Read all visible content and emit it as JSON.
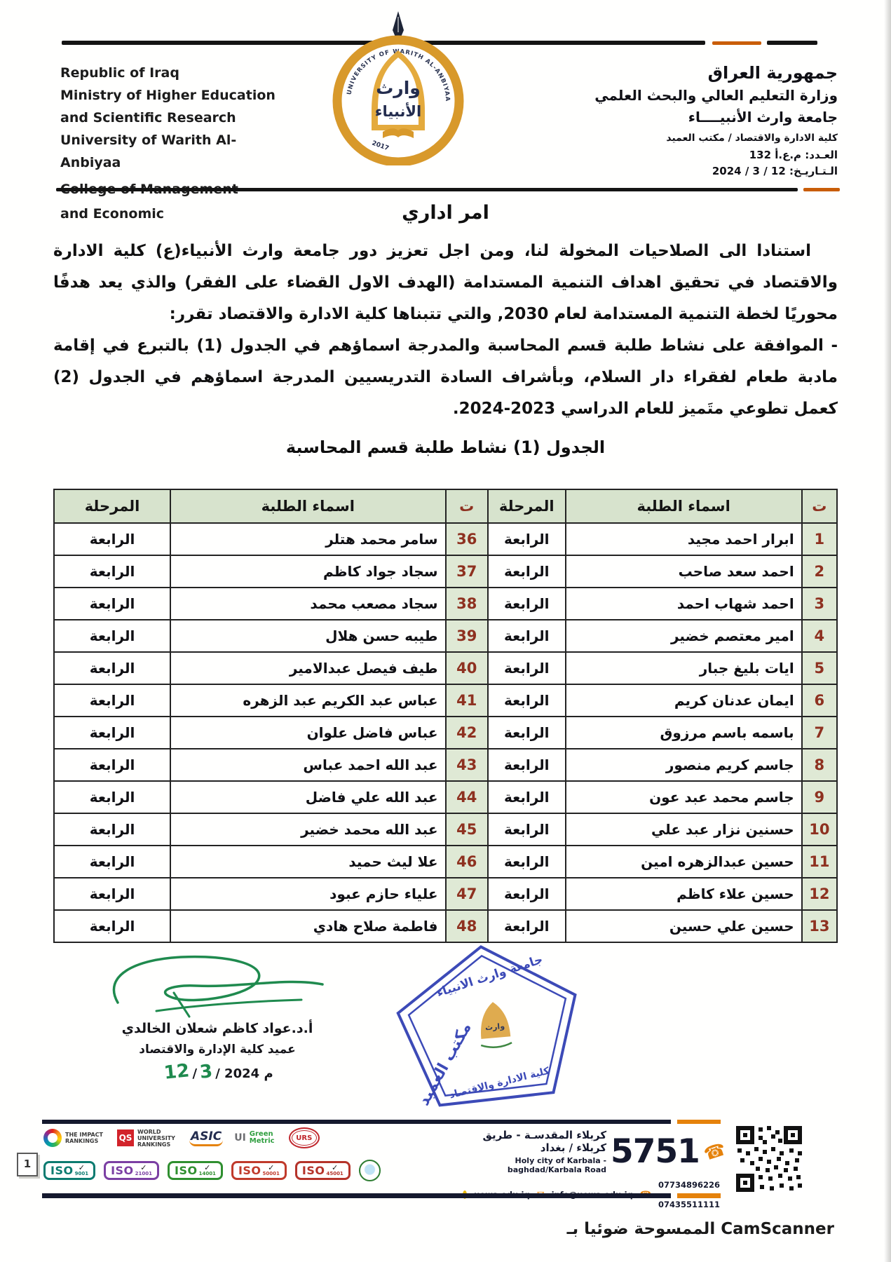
{
  "colors": {
    "table_header_bg": "#d7e3cd",
    "number_cell_bg": "#dfe9d5",
    "number_text": "#8e3120",
    "stamp_blue": "#2c3bb2",
    "signature_green": "#1f8a4e",
    "footer_orange": "#e5820b",
    "footer_navy": "#15192e"
  },
  "header": {
    "english_lines": [
      "Republic of Iraq",
      "Ministry of Higher Education",
      "and Scientific Research",
      "University of Warith Al-Anbiyaa",
      "College of Management",
      "and Economic"
    ],
    "arabic_lines": [
      "جمهورية العراق",
      "وزارة التعليم العالي والبحث العلمي",
      "جامعة وارث الأنبيــــاء",
      "كلية الادارة والاقتصاد / مكتب العميد"
    ],
    "number_line": "العـدد: م.ع.أ 132",
    "date_line": "الـتـاريـخ: 12 / 3 / 2024",
    "logo": {
      "band_text": "UNIVERSITY OF WARITH AL-ANBIYAA",
      "year": "2017",
      "name_line1": "وارث",
      "name_line2": "الأنبياء"
    }
  },
  "document": {
    "title": "امر اداري",
    "paragraph_1": "استنادا الى الصلاحيات المخولة لنا، ومن اجل تعزيز دور جامعة وارث الأنبياء(ع) كلية الادارة والاقتصاد في تحقيق اهداف التنمية المستدامة (الهدف الاول القضاء على الفقر) والذي يعد هدفًا محوريًا لخطة التنمية المستدامة لعام 2030, والتي تتبناها كلية الادارة والاقتصاد تقرر:",
    "paragraph_2": "- الموافقة على نشاط طلبة قسم المحاسبة والمدرجة اسماؤهم في الجدول (1) بالتبرع في إقامة مادبة طعام لفقراء دار السلام، وبأشراف السادة التدريسيين المدرجة اسماؤهم في الجدول (2) كعمل تطوعي متَميز للعام الدراسي 2023-2024."
  },
  "table": {
    "title": "الجدول (1) نشاط طلبة قسم المحاسبة",
    "headers": [
      "ت",
      "اسماء الطلبة",
      "المرحلة",
      "ت",
      "اسماء الطلبة",
      "المرحلة"
    ],
    "rows": [
      {
        "n1": "1",
        "name1": "ابرار احمد مجيد",
        "stage1": "الرابعة",
        "n2": "36",
        "name2": "سامر محمد هتلر",
        "stage2": "الرابعة"
      },
      {
        "n1": "2",
        "name1": "احمد سعد صاحب",
        "stage1": "الرابعة",
        "n2": "37",
        "name2": "سجاد جواد كاظم",
        "stage2": "الرابعة"
      },
      {
        "n1": "3",
        "name1": "احمد شهاب احمد",
        "stage1": "الرابعة",
        "n2": "38",
        "name2": "سجاد مصعب محمد",
        "stage2": "الرابعة"
      },
      {
        "n1": "4",
        "name1": "امير معتصم خضير",
        "stage1": "الرابعة",
        "n2": "39",
        "name2": "طيبه حسن  هلال",
        "stage2": "الرابعة"
      },
      {
        "n1": "5",
        "name1": "ايات بليغ جبار",
        "stage1": "الرابعة",
        "n2": "40",
        "name2": "طيف فيصل عبدالامير",
        "stage2": "الرابعة"
      },
      {
        "n1": "6",
        "name1": "ايمان عدنان كريم",
        "stage1": "الرابعة",
        "n2": "41",
        "name2": "عباس عبد الكريم عبد الزهره",
        "stage2": "الرابعة"
      },
      {
        "n1": "7",
        "name1": "باسمه باسم مرزوق",
        "stage1": "الرابعة",
        "n2": "42",
        "name2": "عباس فاضل علوان",
        "stage2": "الرابعة"
      },
      {
        "n1": "8",
        "name1": "جاسم كريم منصور",
        "stage1": "الرابعة",
        "n2": "43",
        "name2": "عبد الله احمد عباس",
        "stage2": "الرابعة"
      },
      {
        "n1": "9",
        "name1": "جاسم محمد عبد عون",
        "stage1": "الرابعة",
        "n2": "44",
        "name2": "عبد الله علي فاضل",
        "stage2": "الرابعة"
      },
      {
        "n1": "10",
        "name1": "حسنين نزار عبد علي",
        "stage1": "الرابعة",
        "n2": "45",
        "name2": "عبد الله محمد خضير",
        "stage2": "الرابعة"
      },
      {
        "n1": "11",
        "name1": "حسين عبدالزهره امين",
        "stage1": "الرابعة",
        "n2": "46",
        "name2": "علا ليث حميد",
        "stage2": "الرابعة"
      },
      {
        "n1": "12",
        "name1": "حسين علاء كاظم",
        "stage1": "الرابعة",
        "n2": "47",
        "name2": "علياء حازم عبود",
        "stage2": "الرابعة"
      },
      {
        "n1": "13",
        "name1": "حسين علي حسين",
        "stage1": "الرابعة",
        "n2": "48",
        "name2": "فاطمة صلاح هادي",
        "stage2": "الرابعة"
      }
    ]
  },
  "signature": {
    "name": "أ.د.عواد كاظم شعلان الخالدي",
    "title": "عميد كلية الإدارة والاقتصاد",
    "date_day": "12",
    "date_sep": "/",
    "date_month": "3",
    "date_rest": "/ 2024 م"
  },
  "stamp": {
    "line_top": "جامعة وارث الانبياء",
    "line_left": "مكتب العميد",
    "line_bottom": "كلية الادارة والاقتصاد",
    "center_text": "وارث"
  },
  "page_marker": "1",
  "footer": {
    "address_ar": "كربلاء المقدسـة - طريق كربلاء / بغداد",
    "address_en": "Holy city of Karbala - baghdad/Karbala Road",
    "big_number": "5751",
    "website": "uowa.edu.iq",
    "email": "info@uowa.edu.iq",
    "phones": "07734896226 - 07435511111",
    "rankings": [
      {
        "name": "THE IMPACT RANKINGS"
      },
      {
        "badge": "QS",
        "name": "WORLD UNIVERSITY RANKINGS"
      },
      {
        "name": "ASIC"
      },
      {
        "prefix": "UI",
        "name": "Green Metric"
      },
      {
        "name": "URS"
      }
    ],
    "iso_check": "✓",
    "iso": [
      {
        "label": "ISO",
        "num": "9001",
        "color": "#0c7b70"
      },
      {
        "label": "ISO",
        "num": "21001",
        "color": "#7b3fa3"
      },
      {
        "label": "ISO",
        "num": "14001",
        "color": "#2f8f2f"
      },
      {
        "label": "ISO",
        "num": "50001",
        "color": "#c03a2b"
      },
      {
        "label": "ISO",
        "num": "45001",
        "color": "#b5332a"
      }
    ]
  },
  "scanner_note": "الممسوحة ضوئيا بـ CamScanner"
}
